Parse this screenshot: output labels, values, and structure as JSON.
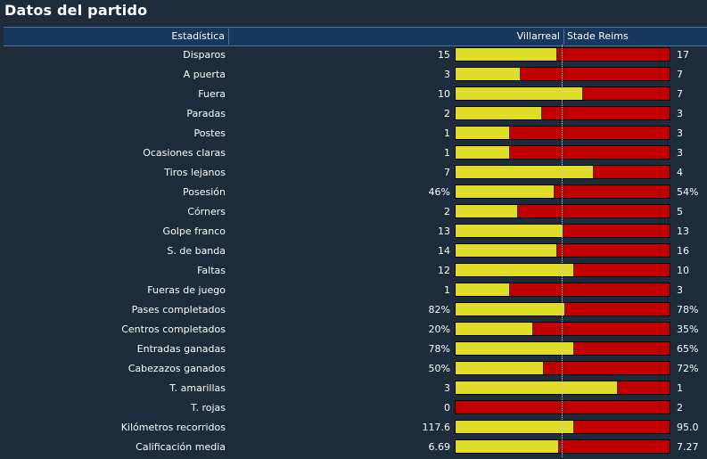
{
  "title": "Datos del partido",
  "header": {
    "stat_label": "Estadística",
    "home_team": "Villarreal",
    "away_team": "Stade Reims"
  },
  "colors": {
    "home_bar": "#dfdc2a",
    "away_bar": "#c00000",
    "header_bg": "#17385c",
    "page_bg": "#1d2b3b"
  },
  "stats": [
    {
      "label": "Disparos",
      "home": "15",
      "away": "17",
      "home_share": 0.47
    },
    {
      "label": "A puerta",
      "home": "3",
      "away": "7",
      "home_share": 0.3
    },
    {
      "label": "Fuera",
      "home": "10",
      "away": "7",
      "home_share": 0.59
    },
    {
      "label": "Paradas",
      "home": "2",
      "away": "3",
      "home_share": 0.4
    },
    {
      "label": "Postes",
      "home": "1",
      "away": "3",
      "home_share": 0.25
    },
    {
      "label": "Ocasiones claras",
      "home": "1",
      "away": "3",
      "home_share": 0.25
    },
    {
      "label": "Tiros lejanos",
      "home": "7",
      "away": "4",
      "home_share": 0.64
    },
    {
      "label": "Posesión",
      "home": "46%",
      "away": "54%",
      "home_share": 0.46
    },
    {
      "label": "Córners",
      "home": "2",
      "away": "5",
      "home_share": 0.29
    },
    {
      "label": "Golpe franco",
      "home": "13",
      "away": "13",
      "home_share": 0.5
    },
    {
      "label": "S. de banda",
      "home": "14",
      "away": "16",
      "home_share": 0.47
    },
    {
      "label": "Faltas",
      "home": "12",
      "away": "10",
      "home_share": 0.55
    },
    {
      "label": "Fueras de juego",
      "home": "1",
      "away": "3",
      "home_share": 0.25
    },
    {
      "label": "Pases completados",
      "home": "82%",
      "away": "78%",
      "home_share": 0.51
    },
    {
      "label": "Centros completados",
      "home": "20%",
      "away": "35%",
      "home_share": 0.36
    },
    {
      "label": "Entradas ganadas",
      "home": "78%",
      "away": "65%",
      "home_share": 0.55
    },
    {
      "label": "Cabezazos ganados",
      "home": "50%",
      "away": "72%",
      "home_share": 0.41
    },
    {
      "label": "T. amarillas",
      "home": "3",
      "away": "1",
      "home_share": 0.75
    },
    {
      "label": "T. rojas",
      "home": "0",
      "away": "2",
      "home_share": 0.0
    },
    {
      "label": "Kilómetros recorridos",
      "home": "117.6",
      "away": "95.0",
      "home_share": 0.55
    },
    {
      "label": "Calificación media",
      "home": "6.69",
      "away": "7.27",
      "home_share": 0.48
    }
  ]
}
